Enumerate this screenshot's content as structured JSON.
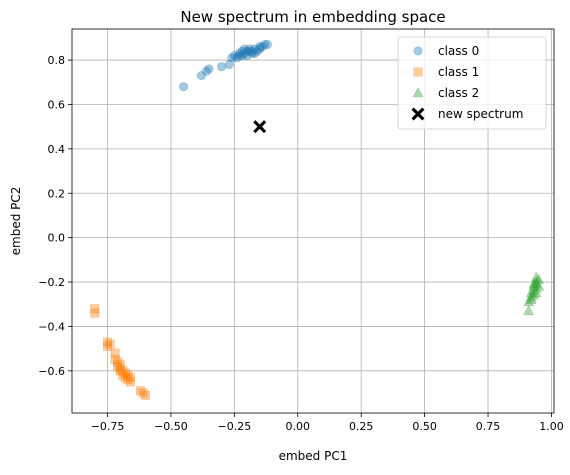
{
  "chart_data": {
    "type": "scatter",
    "title": "New spectrum in embedding space",
    "xlabel": "embed PC1",
    "ylabel": "embed PC2",
    "xlim": [
      -0.89,
      1.01
    ],
    "ylim": [
      -0.79,
      0.94
    ],
    "grid": true,
    "legend_position": "top-right",
    "xticks": [
      -0.75,
      -0.5,
      -0.25,
      0.0,
      0.25,
      0.5,
      0.75,
      1.0
    ],
    "xtick_labels": [
      "−0.75",
      "−0.50",
      "−0.25",
      "0.00",
      "0.25",
      "0.50",
      "0.75",
      "1.00"
    ],
    "yticks": [
      -0.6,
      -0.4,
      -0.2,
      0.0,
      0.2,
      0.4,
      0.6,
      0.8
    ],
    "ytick_labels": [
      "−0.6",
      "−0.4",
      "−0.2",
      "0.0",
      "0.2",
      "0.4",
      "0.6",
      "0.8"
    ],
    "series": [
      {
        "name": "class 0",
        "marker": "circle",
        "color": "#1f77b4",
        "alpha": 0.4,
        "points": [
          [
            -0.45,
            0.68
          ],
          [
            -0.38,
            0.73
          ],
          [
            -0.36,
            0.75
          ],
          [
            -0.35,
            0.76
          ],
          [
            -0.3,
            0.77
          ],
          [
            -0.27,
            0.78
          ],
          [
            -0.26,
            0.81
          ],
          [
            -0.25,
            0.82
          ],
          [
            -0.24,
            0.81
          ],
          [
            -0.23,
            0.82
          ],
          [
            -0.23,
            0.83
          ],
          [
            -0.22,
            0.84
          ],
          [
            -0.22,
            0.82
          ],
          [
            -0.21,
            0.83
          ],
          [
            -0.21,
            0.85
          ],
          [
            -0.2,
            0.84
          ],
          [
            -0.2,
            0.82
          ],
          [
            -0.19,
            0.84
          ],
          [
            -0.19,
            0.85
          ],
          [
            -0.18,
            0.83
          ],
          [
            -0.18,
            0.84
          ],
          [
            -0.17,
            0.85
          ],
          [
            -0.17,
            0.83
          ],
          [
            -0.16,
            0.84
          ],
          [
            -0.15,
            0.85
          ],
          [
            -0.15,
            0.86
          ],
          [
            -0.14,
            0.86
          ],
          [
            -0.13,
            0.87
          ],
          [
            -0.12,
            0.87
          ]
        ]
      },
      {
        "name": "class 1",
        "marker": "square",
        "color": "#ff7f0e",
        "alpha": 0.4,
        "points": [
          [
            -0.8,
            -0.32
          ],
          [
            -0.8,
            -0.34
          ],
          [
            -0.75,
            -0.47
          ],
          [
            -0.75,
            -0.49
          ],
          [
            -0.74,
            -0.48
          ],
          [
            -0.72,
            -0.52
          ],
          [
            -0.72,
            -0.55
          ],
          [
            -0.71,
            -0.56
          ],
          [
            -0.71,
            -0.58
          ],
          [
            -0.7,
            -0.57
          ],
          [
            -0.7,
            -0.59
          ],
          [
            -0.7,
            -0.6
          ],
          [
            -0.69,
            -0.6
          ],
          [
            -0.69,
            -0.62
          ],
          [
            -0.68,
            -0.61
          ],
          [
            -0.68,
            -0.63
          ],
          [
            -0.67,
            -0.62
          ],
          [
            -0.67,
            -0.64
          ],
          [
            -0.66,
            -0.63
          ],
          [
            -0.66,
            -0.65
          ],
          [
            -0.62,
            -0.69
          ],
          [
            -0.61,
            -0.7
          ],
          [
            -0.6,
            -0.71
          ]
        ]
      },
      {
        "name": "class 2",
        "marker": "triangle",
        "color": "#2ca02c",
        "alpha": 0.4,
        "points": [
          [
            0.91,
            -0.33
          ],
          [
            0.91,
            -0.29
          ],
          [
            0.92,
            -0.28
          ],
          [
            0.92,
            -0.27
          ],
          [
            0.92,
            -0.25
          ],
          [
            0.93,
            -0.26
          ],
          [
            0.93,
            -0.24
          ],
          [
            0.93,
            -0.22
          ],
          [
            0.93,
            -0.21
          ],
          [
            0.94,
            -0.23
          ],
          [
            0.94,
            -0.2
          ],
          [
            0.94,
            -0.18
          ],
          [
            0.94,
            -0.21
          ],
          [
            0.95,
            -0.22
          ],
          [
            0.95,
            -0.19
          ],
          [
            0.94,
            -0.25
          ]
        ]
      },
      {
        "name": "new spectrum",
        "marker": "X",
        "color": "#000000",
        "alpha": 1,
        "points": [
          [
            -0.15,
            0.5
          ]
        ]
      }
    ]
  }
}
